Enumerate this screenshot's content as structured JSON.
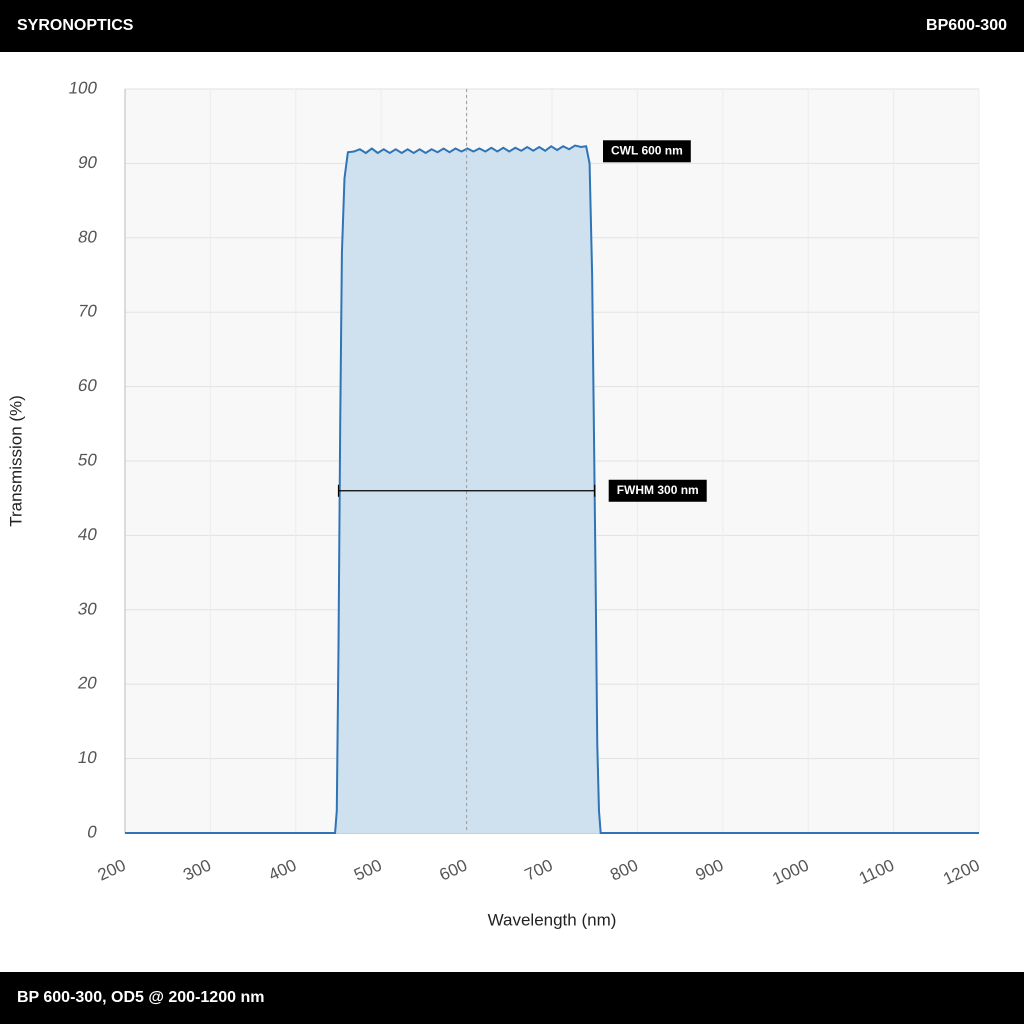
{
  "header": {
    "brand": "SYRONOPTICS",
    "model": "BP600-300"
  },
  "footer": {
    "text": "BP 600-300, OD5 @ 200-1200 nm"
  },
  "chart_data": {
    "type": "line",
    "x_label": "Wavelength (nm)",
    "y_label": "Transmission (%)",
    "color": "#2f74b5",
    "fill": "#cfe1ef",
    "x": [
      200,
      446,
      448,
      450,
      452,
      454,
      457,
      461,
      468,
      475,
      482,
      489,
      496,
      503,
      510,
      517,
      524,
      531,
      538,
      545,
      552,
      559,
      566,
      573,
      580,
      587,
      594,
      601,
      608,
      615,
      622,
      629,
      636,
      643,
      650,
      657,
      664,
      671,
      678,
      685,
      692,
      699,
      706,
      713,
      720,
      727,
      734,
      740,
      744,
      747,
      749,
      751,
      753,
      755,
      757,
      1200
    ],
    "values": [
      0,
      0,
      3,
      25,
      55,
      78,
      88,
      91.5,
      91.6,
      91.9,
      91.4,
      92.0,
      91.4,
      91.9,
      91.4,
      91.9,
      91.4,
      91.9,
      91.4,
      91.9,
      91.4,
      91.9,
      91.5,
      92.0,
      91.5,
      92.0,
      91.6,
      92.0,
      91.6,
      92.0,
      91.6,
      92.1,
      91.6,
      92.1,
      91.6,
      92.1,
      91.7,
      92.2,
      91.7,
      92.2,
      91.7,
      92.3,
      91.8,
      92.3,
      91.9,
      92.4,
      92.2,
      92.3,
      90,
      75,
      55,
      35,
      12,
      3,
      0,
      0
    ],
    "xlim": [
      200,
      1200
    ],
    "ylim": [
      0,
      100
    ],
    "xticks": [
      200,
      300,
      400,
      500,
      600,
      700,
      800,
      900,
      1000,
      1100,
      1200
    ],
    "yticks": [
      0,
      10,
      20,
      30,
      40,
      50,
      60,
      70,
      80,
      90,
      100
    ],
    "grid": true,
    "annotations": {
      "cwl": {
        "text": "CWL 600 nm",
        "x": 600
      },
      "fwhm": {
        "text": "FWHM 300 nm",
        "y": 46,
        "x": [
          450,
          750
        ]
      }
    }
  }
}
